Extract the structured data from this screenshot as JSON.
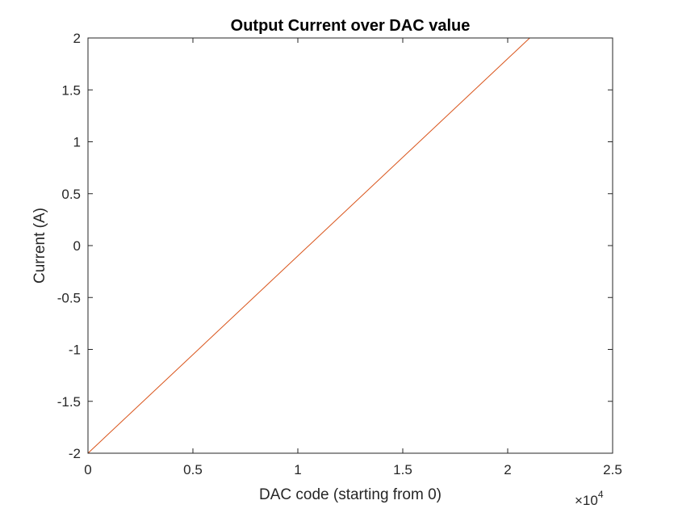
{
  "chart_data": {
    "type": "line",
    "title": "Output Current over DAC value",
    "xlabel": "DAC code (starting from 0)",
    "ylabel": "Current (A)",
    "x_exponent_base": "×10",
    "x_exponent_power": "4",
    "xlim": [
      0,
      25000
    ],
    "ylim": [
      -2,
      2
    ],
    "xticks": [
      0,
      5000,
      10000,
      15000,
      20000,
      25000
    ],
    "xtick_labels": [
      "0",
      "0.5",
      "1",
      "1.5",
      "2",
      "2.5"
    ],
    "yticks": [
      -2,
      -1.5,
      -1,
      -0.5,
      0,
      0.5,
      1,
      1.5,
      2
    ],
    "ytick_labels": [
      "-2",
      "-1.5",
      "-1",
      "-0.5",
      "0",
      "0.5",
      "1",
      "1.5",
      "2"
    ],
    "grid": false,
    "box": true,
    "series": [
      {
        "color": "#d95319",
        "x": [
          0,
          21050
        ],
        "y": [
          -2,
          2
        ]
      }
    ]
  }
}
